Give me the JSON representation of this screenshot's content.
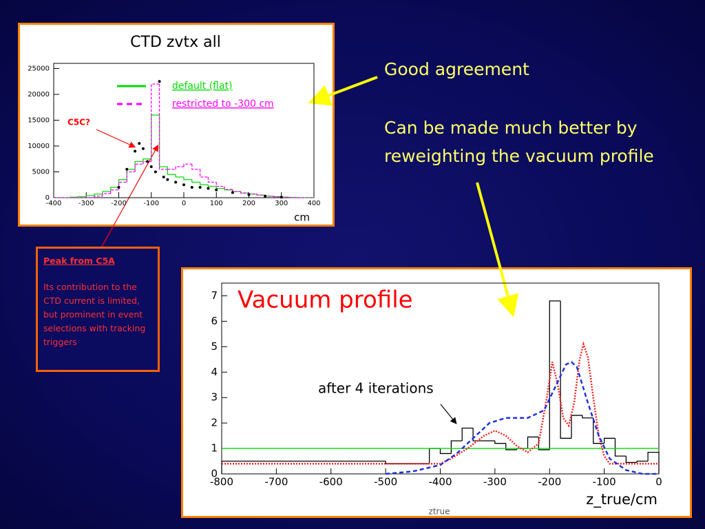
{
  "chart_data": [
    {
      "type": "histogram",
      "title": "CTD zvtx all",
      "xlabel": "cm",
      "note": "C5C?",
      "note_color": "#ff0000",
      "legend": true,
      "bins": [
        -400,
        -375,
        -350,
        -325,
        -300,
        -275,
        -250,
        -225,
        -200,
        -175,
        -150,
        -125,
        -100,
        -75,
        -50,
        -25,
        0,
        25,
        50,
        75,
        100,
        125,
        150,
        175,
        200,
        225,
        250,
        275,
        300,
        325,
        350,
        375,
        400
      ],
      "series": [
        {
          "name": "default (flat)",
          "color": "#00dd00",
          "dash": "none",
          "values": [
            0,
            0,
            100,
            200,
            400,
            700,
            1200,
            2000,
            3500,
            5500,
            7000,
            7500,
            16000,
            6000,
            4500,
            4000,
            3500,
            3000,
            2500,
            2200,
            1800,
            1500,
            1200,
            900,
            700,
            500,
            300,
            200,
            100,
            50,
            0,
            0
          ]
        },
        {
          "name": "restricted to -300 cm",
          "color": "#ff00ff",
          "dash": "4 2",
          "values": [
            0,
            0,
            0,
            0,
            0,
            300,
            800,
            1500,
            3000,
            5000,
            6500,
            7000,
            22000,
            5500,
            5500,
            6000,
            6500,
            5500,
            4000,
            3000,
            2200,
            1600,
            1200,
            900,
            700,
            500,
            300,
            200,
            100,
            50,
            0,
            0
          ]
        }
      ],
      "points": {
        "color": "#000000",
        "x": [
          -200,
          -175,
          -150,
          -137,
          -125,
          -112,
          -100,
          -87,
          -75,
          -62,
          -50,
          -25,
          0,
          25,
          50,
          75,
          100,
          150,
          200,
          250,
          300
        ],
        "y": [
          2000,
          5500,
          9000,
          10500,
          9500,
          7000,
          6000,
          5000,
          22500,
          4000,
          3500,
          3000,
          2500,
          2000,
          2000,
          1800,
          1500,
          1000,
          600,
          300,
          100
        ]
      },
      "xlim": [
        -400,
        400
      ],
      "ylim": [
        0,
        26000
      ],
      "xticks": [
        -400,
        -300,
        -200,
        -100,
        0,
        100,
        200,
        300,
        400
      ],
      "yticks": [
        0,
        5000,
        10000,
        15000,
        20000,
        25000
      ]
    },
    {
      "type": "histogram",
      "title": "Vacuum profile",
      "title_color": "#ff0000",
      "xlabel": "z_true/cm",
      "xname": "ztrue",
      "note": "after 4  iterations",
      "note_color": "#000000",
      "legend": false,
      "bins": [
        -800,
        -500,
        -420,
        -400,
        -380,
        -360,
        -340,
        -320,
        -300,
        -280,
        -260,
        -240,
        -220,
        -200,
        -180,
        -160,
        -140,
        -120,
        -100,
        -80,
        -60,
        -40,
        -20,
        0
      ],
      "series": [
        {
          "color": "#000000",
          "dash": "none",
          "values": [
            0.5,
            0.4,
            1.0,
            0.8,
            1.3,
            1.8,
            1.3,
            1.3,
            1.2,
            0.95,
            1.0,
            1.45,
            0.95,
            6.8,
            1.4,
            2.3,
            2.2,
            1.2,
            1.4,
            0.7,
            0.45,
            0.5,
            0.85
          ]
        }
      ],
      "curves": [
        {
          "color": "#00dd00",
          "dash": "none",
          "x": [
            -800,
            0
          ],
          "y": [
            1,
            1
          ]
        },
        {
          "color": "#ff2020",
          "dash": "2 2",
          "x": [
            -800,
            -400,
            -380,
            -350,
            -320,
            -300,
            -280,
            -260,
            -240,
            -220,
            -205,
            -195,
            -185,
            -175,
            -165,
            -155,
            -145,
            -138,
            -130,
            -120,
            -110,
            -100,
            -90,
            -60,
            0
          ],
          "y": [
            0.4,
            0.4,
            0.6,
            1.0,
            1.5,
            1.7,
            1.5,
            1.1,
            0.85,
            1.2,
            3.0,
            4.4,
            3.5,
            2.2,
            1.9,
            2.8,
            4.5,
            5.1,
            4.6,
            3.0,
            1.5,
            0.7,
            0.4,
            0.4,
            0.4
          ]
        },
        {
          "color": "#2030e0",
          "dash": "6 4",
          "x": [
            -500,
            -450,
            -400,
            -370,
            -340,
            -310,
            -280,
            -240,
            -210,
            -190,
            -170,
            -160,
            -150,
            -130,
            -110,
            -90,
            -60,
            -30,
            0
          ],
          "y": [
            0.0,
            0.1,
            0.35,
            0.8,
            1.4,
            2.0,
            2.2,
            2.2,
            2.5,
            3.4,
            4.3,
            4.4,
            4.2,
            2.8,
            1.5,
            0.6,
            0.15,
            0.0,
            0.0
          ]
        }
      ],
      "xlim": [
        -800,
        0
      ],
      "ylim": [
        0,
        7.5
      ],
      "xticks": [
        -800,
        -700,
        -600,
        -500,
        -400,
        -300,
        -200,
        -100,
        0
      ],
      "yticks": [
        0,
        1,
        2,
        3,
        4,
        5,
        6,
        7
      ]
    }
  ],
  "notes": {
    "peak_title": "Peak from C5A",
    "peak_text": "Its contribution to the CTD current is limited, but prominent in event selections with tracking triggers",
    "agreement": "Good agreement",
    "improvement": "Can be made much better by reweighting the vacuum profile"
  }
}
